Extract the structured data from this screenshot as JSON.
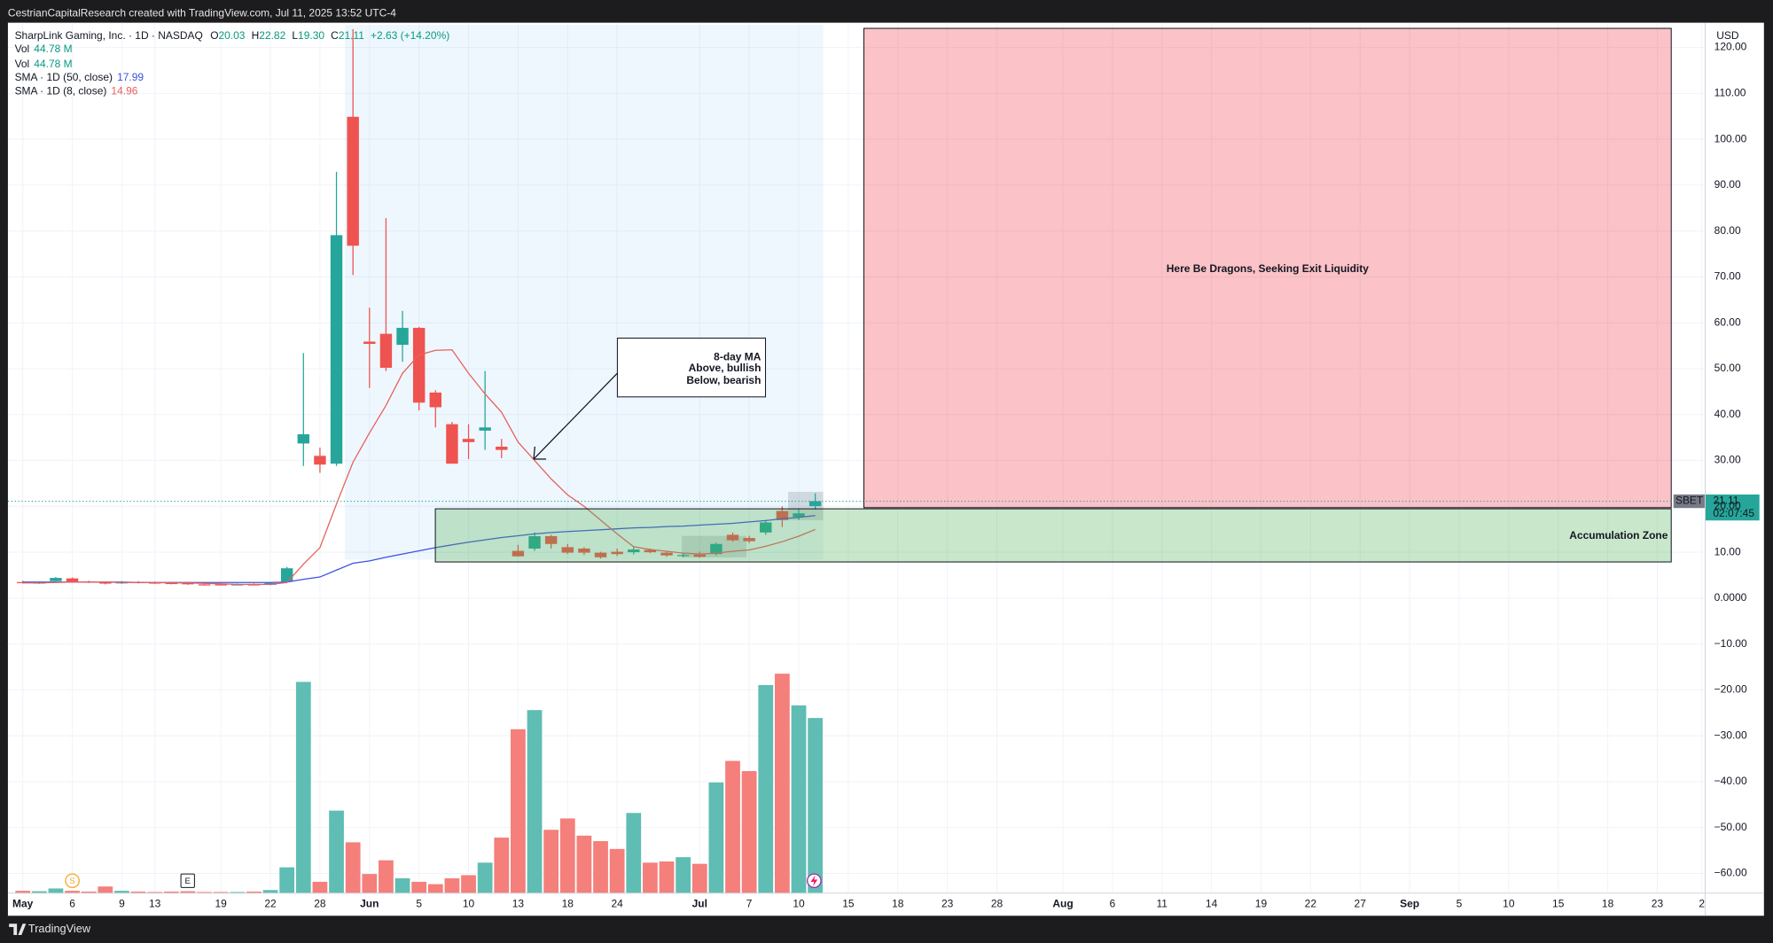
{
  "page": {
    "caption": "CestrianCapitalResearch created with TradingView.com, Jul 11, 2025 13:52 UTC-4",
    "brand": "TradingView"
  },
  "chart_data": {
    "type": "candlestick",
    "title": "SharpLink Gaming, Inc. · 1D · NASDAQ",
    "currency": "USD",
    "legend": {
      "ohlc": [
        {
          "label": "O",
          "value": "20.03"
        },
        {
          "label": "H",
          "value": "22.82"
        },
        {
          "label": "L",
          "value": "19.30"
        },
        {
          "label": "C",
          "value": "21.11"
        }
      ],
      "change": "+2.63 (+14.20%)"
    },
    "x": [
      0,
      1,
      2,
      3,
      4,
      5,
      6,
      7,
      8,
      9,
      10,
      11,
      12,
      13,
      14,
      15,
      16,
      17,
      18,
      19,
      20,
      21,
      22,
      23,
      24,
      25,
      26,
      27,
      28,
      29,
      30,
      31,
      32,
      33,
      34,
      35,
      36,
      37,
      38,
      39,
      40,
      41,
      42,
      43,
      44,
      45,
      46,
      47,
      48
    ],
    "xlim": [
      -0.9,
      101.9
    ],
    "xticks": [
      {
        "value": 0,
        "label": "May"
      },
      {
        "value": 3,
        "label": "6"
      },
      {
        "value": 6,
        "label": "9"
      },
      {
        "value": 8,
        "label": "13"
      },
      {
        "value": 12,
        "label": "19"
      },
      {
        "value": 15,
        "label": "22"
      },
      {
        "value": 18,
        "label": "28"
      },
      {
        "value": 21,
        "label": "Jun"
      },
      {
        "value": 24,
        "label": "5"
      },
      {
        "value": 27,
        "label": "10"
      },
      {
        "value": 30,
        "label": "13"
      },
      {
        "value": 33,
        "label": "18"
      },
      {
        "value": 36,
        "label": "24"
      },
      {
        "value": 41,
        "label": "Jul"
      },
      {
        "value": 44,
        "label": "7"
      },
      {
        "value": 47,
        "label": "10"
      },
      {
        "value": 50,
        "label": "15"
      },
      {
        "value": 53,
        "label": "18"
      },
      {
        "value": 56,
        "label": "23"
      },
      {
        "value": 59,
        "label": "28"
      },
      {
        "value": 63,
        "label": "Aug"
      },
      {
        "value": 66,
        "label": "6"
      },
      {
        "value": 69,
        "label": "11"
      },
      {
        "value": 72,
        "label": "14"
      },
      {
        "value": 75,
        "label": "19"
      },
      {
        "value": 78,
        "label": "22"
      },
      {
        "value": 81,
        "label": "27"
      },
      {
        "value": 84,
        "label": "Sep"
      },
      {
        "value": 87,
        "label": "5"
      },
      {
        "value": 90,
        "label": "10"
      },
      {
        "value": 93,
        "label": "15"
      },
      {
        "value": 96,
        "label": "18"
      },
      {
        "value": 99,
        "label": "23"
      },
      {
        "value": 101.7,
        "label": "2"
      }
    ],
    "ylim": [
      -64.3,
      125.4
    ],
    "yticks": [
      {
        "value": -60,
        "label": "−60.00"
      },
      {
        "value": -50,
        "label": "−50.00"
      },
      {
        "value": -40,
        "label": "−40.00"
      },
      {
        "value": -30,
        "label": "−30.00"
      },
      {
        "value": -20,
        "label": "−20.00"
      },
      {
        "value": -10,
        "label": "−10.00"
      },
      {
        "value": 0,
        "label": "0.0000"
      },
      {
        "value": 10,
        "label": "10.00"
      },
      {
        "value": 20,
        "label": "20.00"
      },
      {
        "value": 30,
        "label": "30.00"
      },
      {
        "value": 40,
        "label": "40.00"
      },
      {
        "value": 50,
        "label": "50.00"
      },
      {
        "value": 60,
        "label": "60.00"
      },
      {
        "value": 70,
        "label": "70.00"
      },
      {
        "value": 80,
        "label": "80.00"
      },
      {
        "value": 90,
        "label": "90.00"
      },
      {
        "value": 100,
        "label": "100.00"
      },
      {
        "value": 110,
        "label": "110.00"
      },
      {
        "value": 120,
        "label": "120.00"
      }
    ],
    "y2lim": [
      0,
      222.5
    ],
    "grid": true,
    "up_color": "#26a69a",
    "down_color": "#ef5350",
    "ohlc": {
      "open": [
        3.5,
        3.3,
        3.7,
        4.3,
        3.6,
        3.4,
        3.2,
        3.5,
        3.4,
        3.3,
        3.3,
        3.0,
        3.0,
        2.9,
        3.0,
        2.9,
        3.6,
        33.7,
        31.0,
        29.3,
        104.9,
        55.9,
        57.6,
        55.2,
        58.9,
        44.8,
        37.9,
        34.7,
        36.5,
        33.0,
        10.3,
        10.8,
        13.5,
        11.1,
        10.8,
        9.9,
        10.1,
        10.0,
        10.5,
        9.9,
        9.2,
        9.5,
        9.6,
        13.8,
        13.1,
        14.3,
        19.0,
        17.7,
        20.03
      ],
      "high": [
        3.8,
        3.6,
        4.6,
        4.5,
        3.8,
        3.6,
        3.7,
        3.7,
        3.6,
        3.5,
        3.5,
        3.3,
        3.2,
        3.2,
        3.2,
        3.5,
        6.8,
        53.4,
        32.8,
        92.9,
        124,
        63.3,
        82.8,
        62.6,
        59.1,
        45.3,
        38.4,
        37.9,
        49.5,
        34.7,
        11.6,
        14.3,
        13.8,
        11.8,
        11.1,
        10.1,
        10.8,
        11.3,
        10.8,
        10.3,
        9.8,
        10.1,
        12.1,
        14.3,
        13.6,
        17.0,
        20.0,
        19.5,
        22.82
      ],
      "low": [
        3.2,
        3.1,
        3.6,
        3.5,
        3.3,
        3.0,
        3.1,
        3.2,
        3.1,
        3.0,
        2.9,
        2.8,
        2.8,
        2.8,
        2.8,
        2.8,
        3.4,
        28.8,
        27.3,
        28.8,
        70.4,
        45.8,
        49.5,
        51.5,
        40.9,
        37.2,
        29.3,
        30.3,
        32.3,
        30.5,
        9.1,
        10.3,
        10.8,
        9.6,
        9.4,
        8.6,
        9.2,
        9.5,
        9.8,
        9.0,
        8.9,
        8.8,
        9.3,
        12.3,
        12.0,
        13.8,
        15.5,
        17.0,
        19.3
      ],
      "close": [
        3.3,
        3.4,
        4.4,
        3.6,
        3.5,
        3.2,
        3.5,
        3.4,
        3.3,
        3.2,
        3.0,
        2.9,
        2.9,
        3.0,
        2.9,
        3.3,
        6.5,
        35.7,
        29.1,
        79.1,
        76.8,
        55.4,
        50.2,
        58.9,
        42.6,
        41.6,
        29.3,
        34.0,
        37.2,
        32.3,
        9.1,
        13.5,
        11.8,
        9.9,
        9.9,
        8.9,
        9.6,
        10.6,
        10.0,
        9.3,
        9.4,
        9.0,
        11.8,
        12.6,
        12.4,
        16.5,
        17.0,
        18.48,
        21.11
      ]
    },
    "volume": {
      "name": "Vol",
      "axis": "y2",
      "value_label": "44.78 M",
      "up_color": "#5fbdb3",
      "down_color": "#f47f7b",
      "values": [
        0.6,
        0.5,
        1.2,
        0.6,
        0.4,
        1.7,
        0.6,
        0.4,
        0.3,
        0.4,
        0.5,
        0.3,
        0.3,
        0.3,
        0.4,
        0.8,
        6.6,
        54.0,
        2.9,
        21.1,
        13.0,
        4.9,
        8.4,
        3.8,
        2.9,
        2.3,
        3.8,
        4.6,
        7.8,
        14.2,
        41.9,
        46.8,
        16.2,
        19.1,
        14.7,
        13.3,
        11.3,
        20.5,
        7.8,
        8.1,
        9.2,
        7.5,
        28.3,
        33.8,
        31.2,
        53.2,
        56.1,
        48.0,
        44.78
      ]
    },
    "series": [
      {
        "name": "SMA · 1D (50, close)",
        "color": "#3f51e0",
        "value_label": "17.99",
        "values": [
          3.5,
          3.5,
          3.5,
          3.5,
          3.5,
          3.5,
          3.5,
          3.4,
          3.4,
          3.4,
          3.4,
          3.4,
          3.4,
          3.4,
          3.4,
          3.4,
          3.5,
          4.1,
          4.6,
          6.1,
          7.6,
          8.1,
          8.9,
          9.6,
          10.3,
          11.0,
          11.6,
          12.2,
          12.7,
          13.2,
          13.6,
          14.0,
          14.3,
          14.5,
          14.7,
          14.9,
          15.1,
          15.3,
          15.4,
          15.6,
          15.7,
          15.9,
          16.1,
          16.3,
          16.6,
          16.9,
          17.3,
          17.6,
          17.99
        ]
      },
      {
        "name": "SMA · 1D (8, close)",
        "color": "#e8605c",
        "value_label": "14.96",
        "values": [
          3.3,
          3.3,
          3.4,
          3.5,
          3.5,
          3.5,
          3.4,
          3.4,
          3.4,
          3.3,
          3.3,
          3.2,
          3.1,
          3.0,
          3.0,
          3.0,
          3.4,
          7.4,
          11.0,
          20.5,
          29.6,
          36.0,
          42.0,
          49.0,
          53.0,
          54.0,
          54.1,
          49.0,
          44.5,
          40.5,
          34.0,
          30.0,
          26.0,
          22.5,
          20.0,
          17.0,
          14.0,
          11.2,
          10.6,
          10.2,
          9.8,
          9.6,
          9.8,
          10.2,
          10.5,
          11.3,
          12.3,
          13.5,
          14.96
        ]
      }
    ],
    "last_price": {
      "symbol": "SBET",
      "value": 21.11,
      "countdown": "02:07:45"
    },
    "annotations": {
      "callout": [
        "8-day MA",
        "Above, bullish",
        "Below, bearish"
      ],
      "red_zone": "Here Be Dragons, Seeking Exit Liquidity",
      "green_zone": "Accumulation Zone"
    },
    "events": [
      "S",
      "E"
    ]
  }
}
